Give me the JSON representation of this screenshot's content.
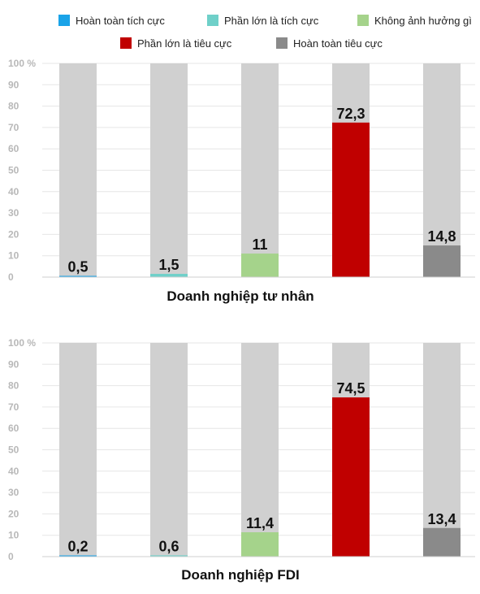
{
  "legend": [
    {
      "label": "Hoàn toàn tích cực",
      "color": "#1aa3e8"
    },
    {
      "label": "Phần lớn là tích cực",
      "color": "#6fd0c9"
    },
    {
      "label": "Không ảnh hưởng gì",
      "color": "#a5d38b"
    },
    {
      "label": "Phần lớn là tiêu cực",
      "color": "#c00000"
    },
    {
      "label": "Hoàn toàn tiêu cực",
      "color": "#8a8a8a"
    }
  ],
  "chart_data": [
    {
      "type": "bar",
      "title": "Doanh nghiệp tư nhân",
      "categories": [
        "Hoàn toàn tích cực",
        "Phần lớn là tích cực",
        "Không ảnh hưởng gì",
        "Phần lớn là tiêu cực",
        "Hoàn toàn tiêu cực"
      ],
      "values": [
        0.5,
        1.5,
        11,
        72.3,
        14.8
      ],
      "value_labels": [
        "0,5",
        "1,5",
        "11",
        "72,3",
        "14,8"
      ],
      "ylim": [
        0,
        100
      ],
      "yticks": [
        "0",
        "10",
        "20",
        "30",
        "40",
        "50",
        "60",
        "70",
        "80",
        "90",
        "100 %"
      ],
      "background_bar_color": "#d0d0d0",
      "grid": true
    },
    {
      "type": "bar",
      "title": "Doanh nghiệp FDI",
      "categories": [
        "Hoàn toàn tích cực",
        "Phần lớn là tích cực",
        "Không ảnh hưởng gì",
        "Phần lớn là tiêu cực",
        "Hoàn toàn tiêu cực"
      ],
      "values": [
        0.2,
        0.6,
        11.4,
        74.5,
        13.4
      ],
      "value_labels": [
        "0,2",
        "0,6",
        "11,4",
        "74,5",
        "13,4"
      ],
      "ylim": [
        0,
        100
      ],
      "yticks": [
        "0",
        "10",
        "20",
        "30",
        "40",
        "50",
        "60",
        "70",
        "80",
        "90",
        "100 %"
      ],
      "background_bar_color": "#d0d0d0",
      "grid": true
    }
  ]
}
